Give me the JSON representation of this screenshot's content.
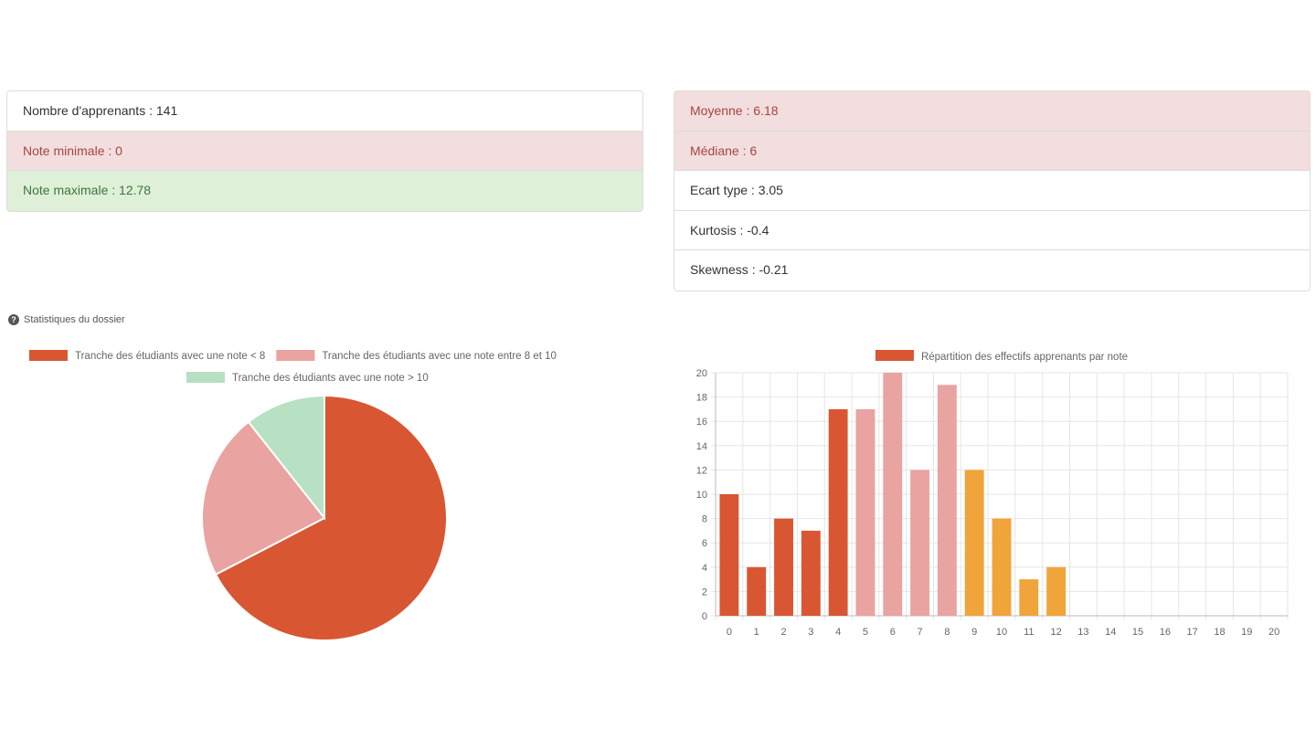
{
  "stats_left": [
    {
      "label": "Nombre d'apprenants : 141",
      "variant": "plain"
    },
    {
      "label": "Note minimale : 0",
      "variant": "danger"
    },
    {
      "label": "Note maximale : 12.78",
      "variant": "success"
    }
  ],
  "stats_right": [
    {
      "label": "Moyenne : 6.18",
      "variant": "danger"
    },
    {
      "label": "Médiane : 6",
      "variant": "danger"
    },
    {
      "label": "Ecart type : 3.05",
      "variant": "plain"
    },
    {
      "label": "Kurtosis : -0.4",
      "variant": "plain"
    },
    {
      "label": "Skewness : -0.21",
      "variant": "plain"
    }
  ],
  "section_title": "Statistiques du dossier",
  "chart_data": [
    {
      "type": "pie",
      "legend_position": "top",
      "slices": [
        {
          "name": "Tranche des étudiants avec une note < 8",
          "value": 95,
          "color": "#d95632"
        },
        {
          "name": "Tranche des étudiants avec une note entre 8 et 10",
          "value": 31,
          "color": "#e9a3a0"
        },
        {
          "name": "Tranche des étudiants avec une note > 10",
          "value": 15,
          "color": "#b8e0c2"
        }
      ]
    },
    {
      "type": "bar",
      "legend_position": "top",
      "series_name": "Répartition des effectifs apprenants par note",
      "legend_color": "#d95632",
      "categories": [
        "0",
        "1",
        "2",
        "3",
        "4",
        "5",
        "6",
        "7",
        "8",
        "9",
        "10",
        "11",
        "12",
        "13",
        "14",
        "15",
        "16",
        "17",
        "18",
        "19",
        "20"
      ],
      "values": [
        10,
        4,
        8,
        7,
        17,
        17,
        20,
        12,
        19,
        12,
        8,
        3,
        4,
        0,
        0,
        0,
        0,
        0,
        0,
        0,
        0
      ],
      "colors": [
        "#d95632",
        "#d95632",
        "#d95632",
        "#d95632",
        "#d95632",
        "#e9a3a0",
        "#e9a3a0",
        "#e9a3a0",
        "#e9a3a0",
        "#f0a43a",
        "#f0a43a",
        "#f0a43a",
        "#f0a43a",
        "#f0a43a",
        "#f0a43a",
        "#f0a43a",
        "#f0a43a",
        "#f0a43a",
        "#f0a43a",
        "#f0a43a",
        "#f0a43a"
      ],
      "ylim": [
        0,
        20
      ],
      "yticks": [
        0,
        2,
        4,
        6,
        8,
        10,
        12,
        14,
        16,
        18,
        20
      ],
      "grid": true
    }
  ]
}
